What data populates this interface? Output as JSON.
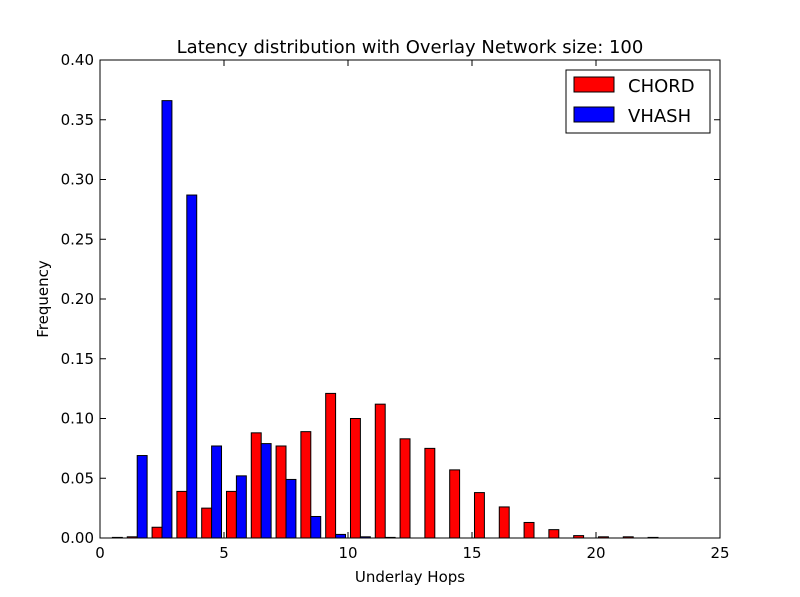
{
  "chart_data": {
    "type": "bar",
    "title": "Latency distribution with Overlay Network size: 100",
    "xlabel": "Underlay Hops",
    "ylabel": "Frequency",
    "xlim": [
      0,
      25
    ],
    "ylim": [
      0,
      0.4
    ],
    "xticks": [
      "0",
      "5",
      "10",
      "15",
      "20",
      "25"
    ],
    "yticks": [
      "0.00",
      "0.05",
      "0.10",
      "0.15",
      "0.20",
      "0.25",
      "0.30",
      "0.35",
      "0.40"
    ],
    "xtick_values": [
      0,
      5,
      10,
      15,
      20,
      25
    ],
    "ytick_values": [
      0,
      0.05,
      0.1,
      0.15,
      0.2,
      0.25,
      0.3,
      0.35,
      0.4
    ],
    "grid": false,
    "legend_position": "top-right",
    "series": [
      {
        "name": "CHORD",
        "color": "#ff0000",
        "x": [
          1,
          2,
          3,
          4,
          5,
          6,
          7,
          8,
          9,
          10,
          11,
          12,
          13,
          14,
          15,
          16,
          17,
          18,
          19,
          20,
          21,
          22
        ],
        "values": [
          0.001,
          0.009,
          0.039,
          0.025,
          0.039,
          0.088,
          0.077,
          0.089,
          0.121,
          0.1,
          0.112,
          0.083,
          0.075,
          0.057,
          0.038,
          0.026,
          0.013,
          0.007,
          0.002,
          0.001,
          0.001,
          0.0005
        ]
      },
      {
        "name": "VHASH",
        "color": "#0000ff",
        "x": [
          1,
          2,
          3,
          4,
          5,
          6,
          7,
          8,
          9,
          10,
          11,
          12
        ],
        "values": [
          0.0005,
          0.069,
          0.366,
          0.287,
          0.077,
          0.052,
          0.079,
          0.049,
          0.018,
          0.003,
          0.001,
          0.0005
        ]
      }
    ]
  }
}
